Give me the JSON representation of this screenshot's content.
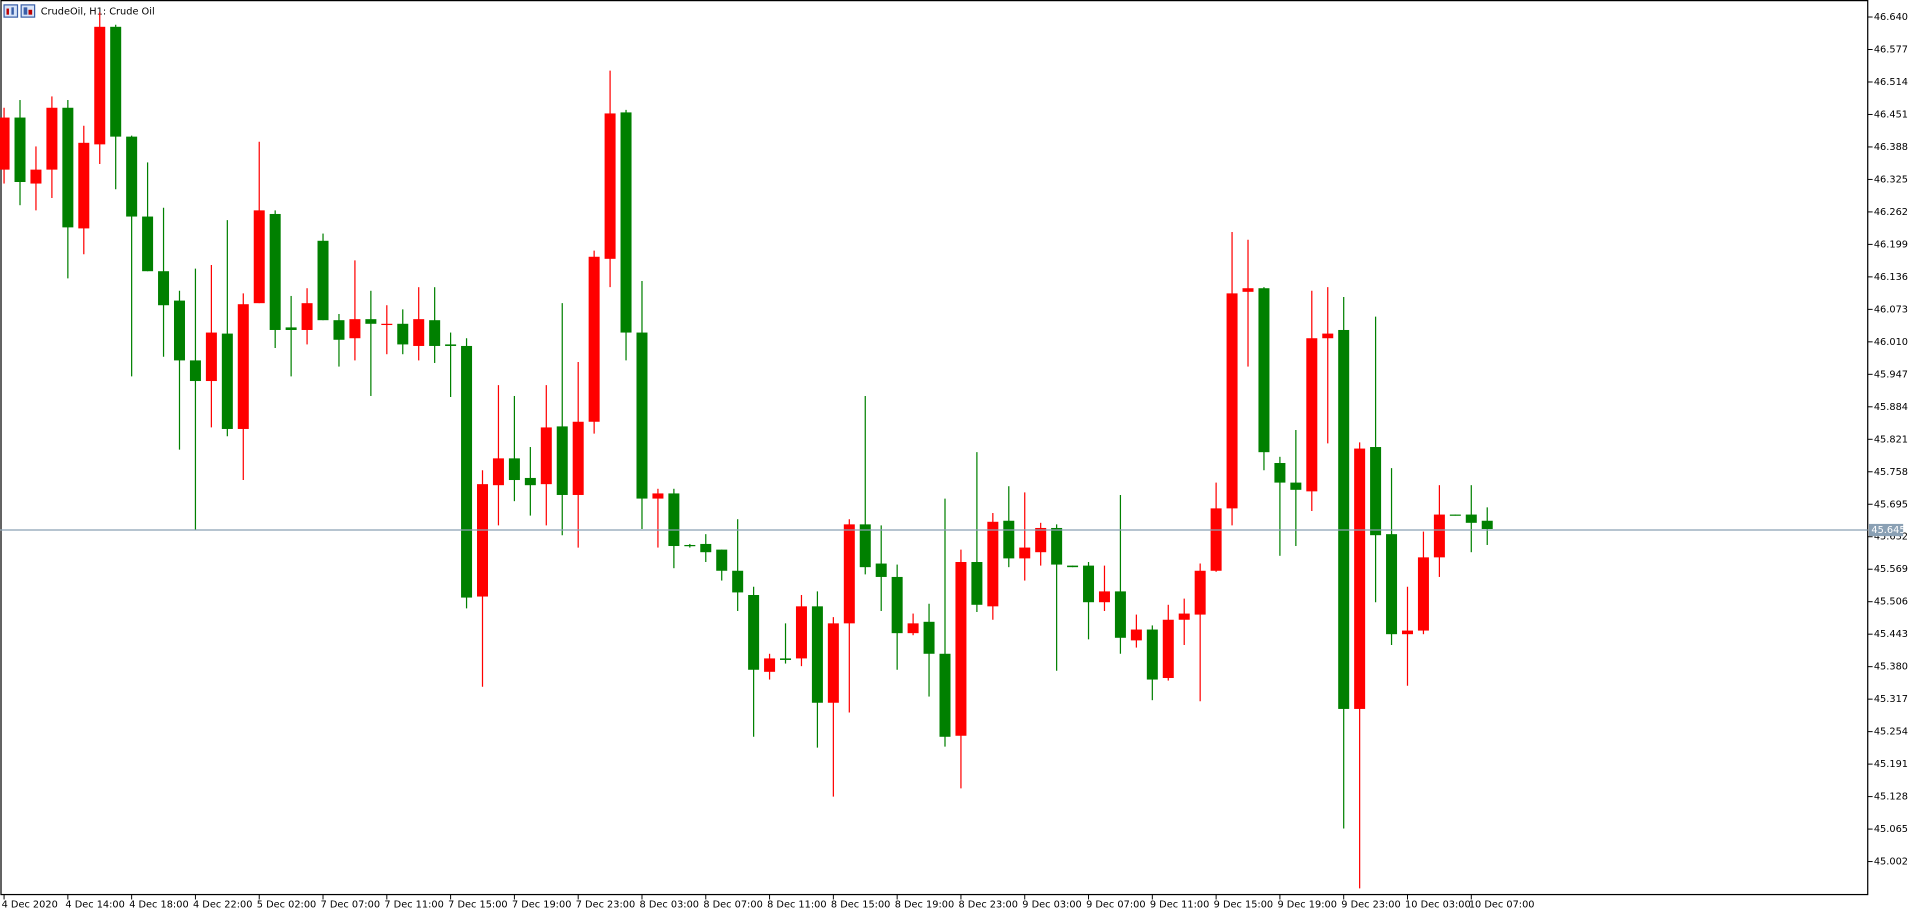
{
  "chart_data": {
    "type": "candlestick",
    "title": "CrudeOil, H1:  Crude Oil",
    "up_color": "#ff0000",
    "down_color": "#008000",
    "categories": [
      "4 Dec 2020",
      null,
      null,
      null,
      "4 Dec 14:00",
      null,
      null,
      null,
      "4 Dec 18:00",
      null,
      null,
      null,
      "4 Dec 22:00",
      null,
      null,
      null,
      "5 Dec 02:00",
      null,
      null,
      null,
      "7 Dec 07:00",
      null,
      null,
      null,
      "7 Dec 11:00",
      null,
      null,
      null,
      "7 Dec 15:00",
      null,
      null,
      null,
      "7 Dec 19:00",
      null,
      null,
      null,
      "7 Dec 23:00",
      null,
      null,
      null,
      "8 Dec 03:00",
      null,
      null,
      null,
      "8 Dec 07:00",
      null,
      null,
      null,
      "8 Dec 11:00",
      null,
      null,
      null,
      "8 Dec 15:00",
      null,
      null,
      null,
      "8 Dec 19:00",
      null,
      null,
      null,
      "8 Dec 23:00",
      null,
      null,
      null,
      "9 Dec 03:00",
      null,
      null,
      null,
      "9 Dec 07:00",
      null,
      null,
      null,
      "9 Dec 11:00",
      null,
      null,
      null,
      "9 Dec 15:00",
      null,
      null,
      null,
      "9 Dec 19:00",
      null,
      null,
      null,
      "9 Dec 23:00",
      null,
      null,
      null,
      "10 Dec 03:00",
      null,
      null,
      null,
      "10 Dec 07:00",
      null
    ],
    "open": [
      46.344,
      46.445,
      46.317,
      46.344,
      46.464,
      46.23,
      46.393,
      46.621,
      46.408,
      46.253,
      46.147,
      46.09,
      45.974,
      45.934,
      46.026,
      45.841,
      46.085,
      46.258,
      46.038,
      46.033,
      46.206,
      46.052,
      46.017,
      46.054,
      46.043,
      46.045,
      46.002,
      46.052,
      46.005,
      46.002,
      45.516,
      45.732,
      45.784,
      45.746,
      45.734,
      45.846,
      45.713,
      45.855,
      46.171,
      46.455,
      46.028,
      45.706,
      45.716,
      45.616,
      45.618,
      45.607,
      45.566,
      45.519,
      45.37,
      45.396,
      45.396,
      45.497,
      45.31,
      45.464,
      45.656,
      45.58,
      45.554,
      45.445,
      45.467,
      45.405,
      45.246,
      45.583,
      45.497,
      45.663,
      45.59,
      45.602,
      45.649,
      45.576,
      45.576,
      45.505,
      45.526,
      45.431,
      45.452,
      45.358,
      45.471,
      45.481,
      45.566,
      45.687,
      46.107,
      46.114,
      45.775,
      45.737,
      45.72,
      46.017,
      46.033,
      45.298,
      45.806,
      45.637,
      45.443,
      45.45,
      45.592,
      45.675,
      45.675,
      45.663
    ],
    "high": [
      46.464,
      46.479,
      46.389,
      46.486,
      46.479,
      46.429,
      46.649,
      46.625,
      46.41,
      46.358,
      46.27,
      46.109,
      46.152,
      46.159,
      46.246,
      46.104,
      46.398,
      46.265,
      46.099,
      46.114,
      46.22,
      46.064,
      46.168,
      46.109,
      46.081,
      46.073,
      46.116,
      46.116,
      46.028,
      46.017,
      45.761,
      45.926,
      45.905,
      45.806,
      45.926,
      46.085,
      45.971,
      46.187,
      46.536,
      46.46,
      46.128,
      45.725,
      45.725,
      45.618,
      45.637,
      45.607,
      45.666,
      45.535,
      45.405,
      45.464,
      45.519,
      45.526,
      45.476,
      45.666,
      45.905,
      45.654,
      45.578,
      45.483,
      45.502,
      45.706,
      45.607,
      45.796,
      45.678,
      45.73,
      45.718,
      45.659,
      45.656,
      45.576,
      45.583,
      45.576,
      45.713,
      45.481,
      45.46,
      45.5,
      45.512,
      45.58,
      45.737,
      46.223,
      46.208,
      46.116,
      45.787,
      45.839,
      46.109,
      46.116,
      46.097,
      45.815,
      46.059,
      45.765,
      45.535,
      45.642,
      45.732,
      45.675,
      45.732,
      45.689
    ],
    "low": [
      46.317,
      46.275,
      46.265,
      46.289,
      46.133,
      46.18,
      46.355,
      46.306,
      45.943,
      46.147,
      45.981,
      45.801,
      45.644,
      45.844,
      45.827,
      45.742,
      46.085,
      45.998,
      45.943,
      46.005,
      46.052,
      45.962,
      45.974,
      45.905,
      45.986,
      45.986,
      45.974,
      45.969,
      45.903,
      45.493,
      45.341,
      45.654,
      45.701,
      45.673,
      45.654,
      45.635,
      45.611,
      45.832,
      46.116,
      45.974,
      45.647,
      45.611,
      45.571,
      45.611,
      45.583,
      45.547,
      45.488,
      45.244,
      45.355,
      45.386,
      45.381,
      45.223,
      45.128,
      45.291,
      45.559,
      45.488,
      45.374,
      45.441,
      45.322,
      45.225,
      45.144,
      45.486,
      45.471,
      45.573,
      45.547,
      45.576,
      45.372,
      45.573,
      45.433,
      45.488,
      45.405,
      45.417,
      45.315,
      45.353,
      45.422,
      45.313,
      45.564,
      45.654,
      45.962,
      45.761,
      45.595,
      45.614,
      45.682,
      45.813,
      45.066,
      44.95,
      45.505,
      45.422,
      45.343,
      45.443,
      45.554,
      45.673,
      45.602,
      45.616
    ],
    "close": [
      46.445,
      46.32,
      46.344,
      46.464,
      46.232,
      46.396,
      46.621,
      46.408,
      46.253,
      46.147,
      46.081,
      45.974,
      45.934,
      46.028,
      45.841,
      46.083,
      46.265,
      46.033,
      46.033,
      46.085,
      46.052,
      46.014,
      46.054,
      46.045,
      46.045,
      46.005,
      46.054,
      46.002,
      46.002,
      45.514,
      45.734,
      45.784,
      45.742,
      45.732,
      45.844,
      45.713,
      45.855,
      46.175,
      46.453,
      46.028,
      45.706,
      45.716,
      45.614,
      45.614,
      45.602,
      45.566,
      45.524,
      45.374,
      45.396,
      45.393,
      45.497,
      45.31,
      45.464,
      45.656,
      45.573,
      45.554,
      45.445,
      45.464,
      45.405,
      45.244,
      45.583,
      45.5,
      45.661,
      45.59,
      45.611,
      45.649,
      45.578,
      45.573,
      45.505,
      45.526,
      45.436,
      45.452,
      45.355,
      45.471,
      45.483,
      45.566,
      45.687,
      46.104,
      46.114,
      45.796,
      45.737,
      45.723,
      46.017,
      46.026,
      45.298,
      45.803,
      45.635,
      45.443,
      45.45,
      45.592,
      45.675,
      45.673,
      45.659,
      45.647
    ],
    "current_price": 45.645,
    "ylim": [
      44.938,
      46.673
    ],
    "yticks": [
      {
        "value": 46.64,
        "label": "46.640"
      },
      46.577,
      46.514,
      46.451,
      46.388,
      46.325,
      46.262,
      46.199,
      46.136,
      46.073,
      {
        "value": 46.01,
        "label": "46.010"
      },
      45.947,
      45.884,
      45.821,
      45.758,
      45.695,
      45.632,
      45.569,
      45.506,
      45.443,
      {
        "value": 45.38,
        "label": "45.380"
      },
      45.317,
      45.254,
      45.191,
      45.128,
      45.065,
      45.002
    ]
  }
}
